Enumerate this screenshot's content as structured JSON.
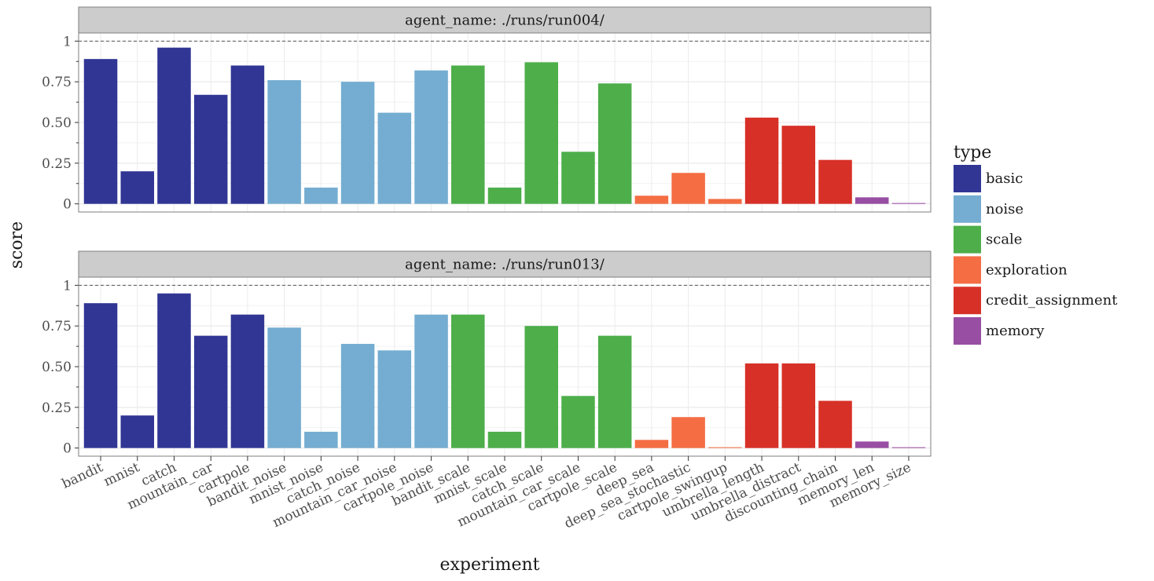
{
  "chart_data": {
    "type": "bar",
    "xlabel": "experiment",
    "ylabel": "score",
    "ylim": [
      0,
      1
    ],
    "yticks": [
      0,
      0.25,
      0.5,
      0.75,
      1
    ],
    "ytick_labels": [
      "0",
      "0.25",
      "0.50",
      "0.75",
      "1"
    ],
    "reference_line": 1,
    "grid": true,
    "legend": {
      "title": "type",
      "position": "right",
      "entries": [
        {
          "name": "basic",
          "color": "#313695"
        },
        {
          "name": "noise",
          "color": "#74add1"
        },
        {
          "name": "scale",
          "color": "#4dae4a"
        },
        {
          "name": "exploration",
          "color": "#f46d43"
        },
        {
          "name": "credit_assignment",
          "color": "#d73027"
        },
        {
          "name": "memory",
          "color": "#984ea3"
        }
      ]
    },
    "categories": [
      "bandit",
      "mnist",
      "catch",
      "mountain_car",
      "cartpole",
      "bandit_noise",
      "mnist_noise",
      "catch_noise",
      "mountain_car_noise",
      "cartpole_noise",
      "bandit_scale",
      "mnist_scale",
      "catch_scale",
      "mountain_car_scale",
      "cartpole_scale",
      "deep_sea",
      "deep_sea_stochastic",
      "cartpole_swingup",
      "umbrella_length",
      "umbrella_distract",
      "discounting_chain",
      "memory_len",
      "memory_size"
    ],
    "category_types": [
      "basic",
      "basic",
      "basic",
      "basic",
      "basic",
      "noise",
      "noise",
      "noise",
      "noise",
      "noise",
      "scale",
      "scale",
      "scale",
      "scale",
      "scale",
      "exploration",
      "exploration",
      "exploration",
      "credit_assignment",
      "credit_assignment",
      "credit_assignment",
      "memory",
      "memory"
    ],
    "panels": [
      {
        "title": "agent_name: ./runs/run004/",
        "values": [
          0.89,
          0.2,
          0.96,
          0.67,
          0.85,
          0.76,
          0.1,
          0.75,
          0.56,
          0.82,
          0.85,
          0.1,
          0.87,
          0.32,
          0.74,
          0.05,
          0.19,
          0.03,
          0.53,
          0.48,
          0.27,
          0.04,
          0.005
        ]
      },
      {
        "title": "agent_name: ./runs/run013/",
        "values": [
          0.89,
          0.2,
          0.95,
          0.69,
          0.82,
          0.74,
          0.1,
          0.64,
          0.6,
          0.82,
          0.82,
          0.1,
          0.75,
          0.32,
          0.69,
          0.05,
          0.19,
          0.005,
          0.52,
          0.52,
          0.29,
          0.04,
          0.005
        ]
      }
    ]
  }
}
